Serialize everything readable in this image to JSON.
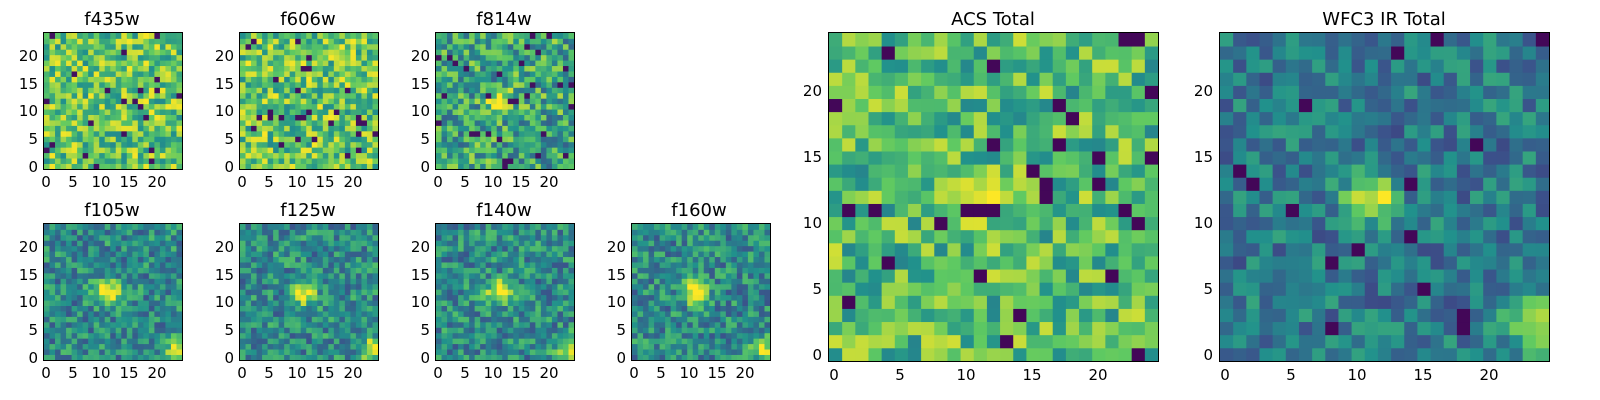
{
  "chart_data": [
    {
      "type": "heatmap",
      "title": "f435w",
      "xticks": [
        "0",
        "5",
        "10",
        "15",
        "20"
      ],
      "yticks": [
        "0",
        "5",
        "10",
        "15",
        "20"
      ],
      "xlim": [
        -0.5,
        24.5
      ],
      "ylim": [
        -0.5,
        24.5
      ],
      "grid": false,
      "style": "noise"
    },
    {
      "type": "heatmap",
      "title": "f606w",
      "xticks": [
        "0",
        "5",
        "10",
        "15",
        "20"
      ],
      "yticks": [
        "0",
        "5",
        "10",
        "15",
        "20"
      ],
      "xlim": [
        -0.5,
        24.5
      ],
      "ylim": [
        -0.5,
        24.5
      ],
      "grid": false,
      "style": "noise"
    },
    {
      "type": "heatmap",
      "title": "f814w",
      "xticks": [
        "0",
        "5",
        "10",
        "15",
        "20"
      ],
      "yticks": [
        "0",
        "5",
        "10",
        "15",
        "20"
      ],
      "xlim": [
        -0.5,
        24.5
      ],
      "ylim": [
        -0.5,
        24.5
      ],
      "grid": false,
      "style": "faint-source",
      "source_center": [
        11,
        12
      ]
    },
    {
      "type": "heatmap",
      "title": "f105w",
      "xticks": [
        "0",
        "5",
        "10",
        "15",
        "20"
      ],
      "yticks": [
        "0",
        "5",
        "10",
        "15",
        "20"
      ],
      "xlim": [
        -0.5,
        24.5
      ],
      "ylim": [
        -0.5,
        24.5
      ],
      "grid": false,
      "style": "source",
      "source_center": [
        11,
        12
      ]
    },
    {
      "type": "heatmap",
      "title": "f125w",
      "xticks": [
        "0",
        "5",
        "10",
        "15",
        "20"
      ],
      "yticks": [
        "0",
        "5",
        "10",
        "15",
        "20"
      ],
      "xlim": [
        -0.5,
        24.5
      ],
      "ylim": [
        -0.5,
        24.5
      ],
      "grid": false,
      "style": "source",
      "source_center": [
        11,
        12
      ]
    },
    {
      "type": "heatmap",
      "title": "f140w",
      "xticks": [
        "0",
        "5",
        "10",
        "15",
        "20"
      ],
      "yticks": [
        "0",
        "5",
        "10",
        "15",
        "20"
      ],
      "xlim": [
        -0.5,
        24.5
      ],
      "ylim": [
        -0.5,
        24.5
      ],
      "grid": false,
      "style": "source",
      "source_center": [
        11,
        12
      ]
    },
    {
      "type": "heatmap",
      "title": "f160w",
      "xticks": [
        "0",
        "5",
        "10",
        "15",
        "20"
      ],
      "yticks": [
        "0",
        "5",
        "10",
        "15",
        "20"
      ],
      "xlim": [
        -0.5,
        24.5
      ],
      "ylim": [
        -0.5,
        24.5
      ],
      "grid": false,
      "style": "source",
      "source_center": [
        11,
        12
      ]
    },
    {
      "type": "heatmap",
      "title": "ACS Total",
      "xticks": [
        "0",
        "5",
        "10",
        "15",
        "20"
      ],
      "yticks": [
        "0",
        "5",
        "10",
        "15",
        "20"
      ],
      "xlim": [
        -0.5,
        24.5
      ],
      "ylim": [
        -0.5,
        24.5
      ],
      "grid": false,
      "style": "acs",
      "source_center": [
        11,
        12
      ]
    },
    {
      "type": "heatmap",
      "title": "WFC3 IR Total",
      "xticks": [
        "0",
        "5",
        "10",
        "15",
        "20"
      ],
      "yticks": [
        "0",
        "5",
        "10",
        "15",
        "20"
      ],
      "xlim": [
        -0.5,
        24.5
      ],
      "ylim": [
        -0.5,
        24.5
      ],
      "grid": false,
      "style": "ir",
      "source_center": [
        11,
        12
      ]
    }
  ],
  "colors": {
    "colormap": [
      "#440154",
      "#3b528b",
      "#21918c",
      "#5ec962",
      "#fde725"
    ]
  }
}
